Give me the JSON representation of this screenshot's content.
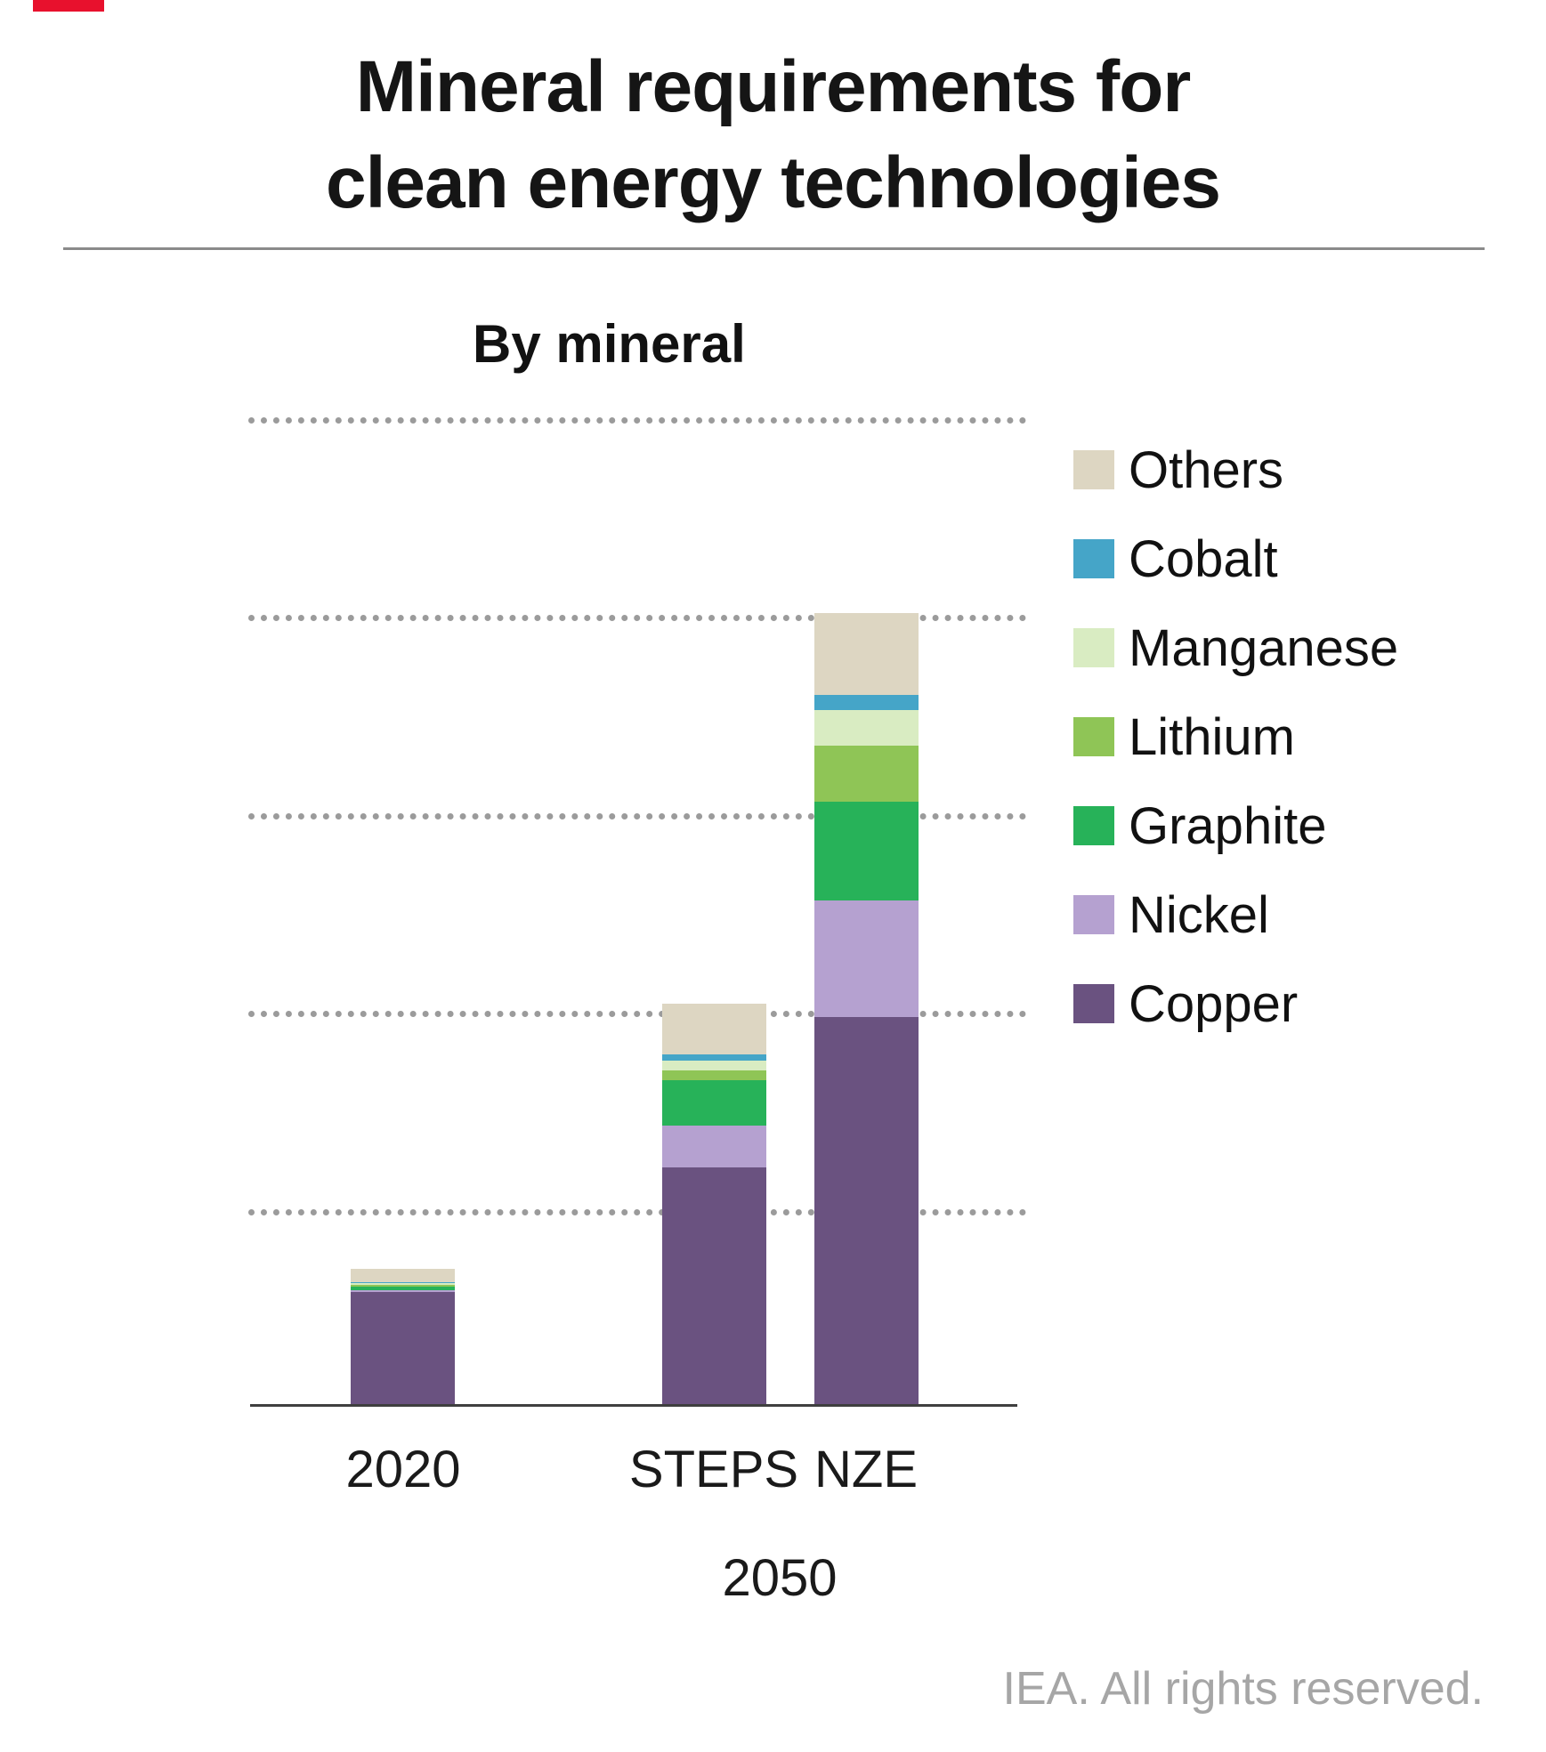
{
  "page": {
    "title_line1": "Mineral requirements for",
    "title_line2": "clean energy technologies",
    "footer": "IEA. All rights reserved."
  },
  "chart_data": {
    "type": "bar",
    "stacked": true,
    "title": "By mineral",
    "categories": [
      "2020",
      "STEPS",
      "NZE"
    ],
    "category_group_label": "2050",
    "value_note": "relative units; one dotted gridline interval = 1 unit; no numeric axis labels shown in image",
    "ylim": [
      0,
      5
    ],
    "gridlines": [
      1,
      2,
      3,
      4,
      5
    ],
    "grid_style": "dotted",
    "legend_position": "right",
    "legend_order_top_to_bottom": [
      "Others",
      "Cobalt",
      "Manganese",
      "Lithium",
      "Graphite",
      "Nickel",
      "Copper"
    ],
    "series": [
      {
        "name": "Copper",
        "color": "#6a5280",
        "values": [
          0.57,
          1.2,
          1.96
        ]
      },
      {
        "name": "Nickel",
        "color": "#b5a1d0",
        "values": [
          0.01,
          0.21,
          0.59
        ]
      },
      {
        "name": "Graphite",
        "color": "#27b259",
        "values": [
          0.02,
          0.23,
          0.5
        ]
      },
      {
        "name": "Lithium",
        "color": "#8fc556",
        "values": [
          0.005,
          0.05,
          0.28
        ]
      },
      {
        "name": "Manganese",
        "color": "#d9ecc2",
        "values": [
          0.01,
          0.05,
          0.18
        ]
      },
      {
        "name": "Cobalt",
        "color": "#45a5c8",
        "values": [
          0.005,
          0.03,
          0.08
        ]
      },
      {
        "name": "Others",
        "color": "#ddd6c2",
        "values": [
          0.07,
          0.26,
          0.41
        ]
      }
    ]
  },
  "colors": {
    "grid": "#9b9b9b",
    "axis": "#3f3f3f",
    "footer_text": "#a6a6a6",
    "accent_mark": "#e8112d"
  }
}
